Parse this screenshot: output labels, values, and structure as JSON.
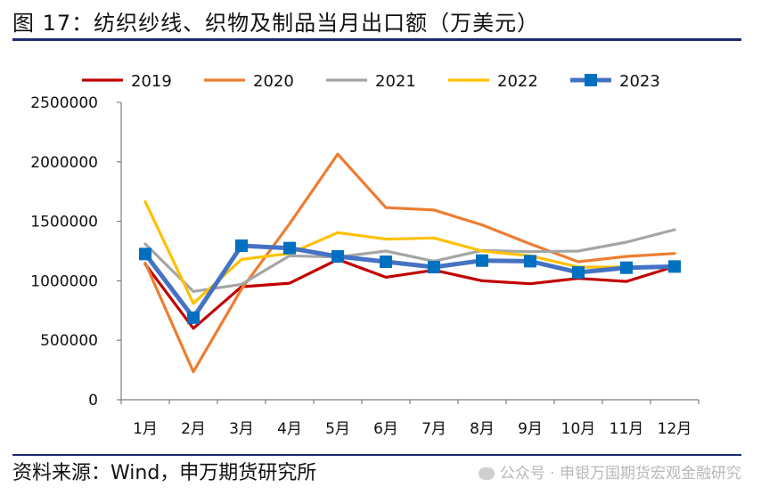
{
  "header": {
    "title": "图 17：纺织纱线、织物及制品当月出口额（万美元）"
  },
  "footer": {
    "source": "资料来源：Wind，申万期货研究所",
    "watermark": "公众号 · 申银万国期货宏观金融研究",
    "watermark_icon": "wechat-icon"
  },
  "chart_data": {
    "type": "line",
    "title": "纺织纱线、织物及制品当月出口额（万美元）",
    "xlabel": "",
    "ylabel": "",
    "categories": [
      "1月",
      "2月",
      "3月",
      "4月",
      "5月",
      "6月",
      "7月",
      "8月",
      "9月",
      "10月",
      "11月",
      "12月"
    ],
    "ylim": [
      0,
      2500000
    ],
    "yticks": [
      "0",
      "500000",
      "1000000",
      "1500000",
      "2000000",
      "2500000"
    ],
    "grid": false,
    "legend_position": "top",
    "series": [
      {
        "name": "2019",
        "color": "#c00000",
        "marker": "none",
        "values": [
          1140000,
          600000,
          950000,
          980000,
          1180000,
          1030000,
          1090000,
          1000000,
          975000,
          1020000,
          995000,
          1120000
        ]
      },
      {
        "name": "2020",
        "color": "#ed7d31",
        "marker": "none",
        "values": [
          1150000,
          235000,
          930000,
          1480000,
          2065000,
          1615000,
          1595000,
          1470000,
          1310000,
          1160000,
          1205000,
          1230000
        ]
      },
      {
        "name": "2021",
        "color": "#a5a5a5",
        "marker": "none",
        "values": [
          1310000,
          910000,
          970000,
          1210000,
          1200000,
          1250000,
          1165000,
          1255000,
          1245000,
          1250000,
          1325000,
          1430000
        ]
      },
      {
        "name": "2022",
        "color": "#ffc000",
        "marker": "none",
        "values": [
          1665000,
          810000,
          1180000,
          1230000,
          1405000,
          1350000,
          1360000,
          1250000,
          1210000,
          1115000,
          1115000,
          1120000
        ]
      },
      {
        "name": "2023",
        "color": "#4472c4",
        "marker": "square",
        "marker_color": "#0070c0",
        "values": [
          1225000,
          690000,
          1295000,
          1275000,
          1205000,
          1160000,
          1115000,
          1170000,
          1165000,
          1070000,
          1110000,
          1120000
        ]
      }
    ]
  }
}
